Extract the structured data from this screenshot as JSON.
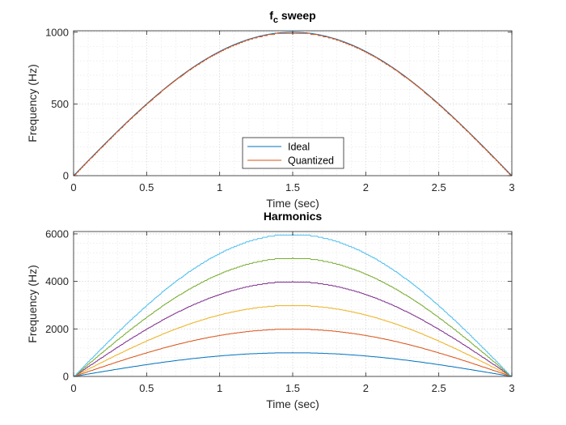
{
  "chart_data": [
    {
      "type": "line",
      "title": "f",
      "title_subscript": "c",
      "title_suffix": " sweep",
      "xlabel": "Time (sec)",
      "ylabel": "Frequency (Hz)",
      "xlim": [
        0,
        3
      ],
      "ylim": [
        0,
        1010
      ],
      "xticks": [
        0,
        0.5,
        1,
        1.5,
        2,
        2.5,
        3
      ],
      "xtick_labels": [
        "0",
        "0.5",
        "1",
        "1.5",
        "2",
        "2.5",
        "3"
      ],
      "yticks": [
        0,
        500,
        1000
      ],
      "ytick_labels": [
        "0",
        "500",
        "1000"
      ],
      "grid": true,
      "minor_grid": true,
      "legend_position": "lower-center",
      "series": [
        {
          "name": "Ideal",
          "color": "#0072BD",
          "function": "1000*sin(pi*t/3)",
          "t_range": [
            0,
            3
          ],
          "step_hz": 0
        },
        {
          "name": "Quantized",
          "color": "#D95319",
          "function": "1000*sin(pi*t/3)",
          "t_range": [
            0,
            3
          ],
          "step_hz": 8
        }
      ]
    },
    {
      "type": "line",
      "title": "Harmonics",
      "xlabel": "Time (sec)",
      "ylabel": "Frequency (Hz)",
      "xlim": [
        0,
        3
      ],
      "ylim": [
        0,
        6100
      ],
      "xticks": [
        0,
        0.5,
        1,
        1.5,
        2,
        2.5,
        3
      ],
      "xtick_labels": [
        "0",
        "0.5",
        "1",
        "1.5",
        "2",
        "2.5",
        "3"
      ],
      "yticks": [
        0,
        2000,
        4000,
        6000
      ],
      "ytick_labels": [
        "0",
        "2000",
        "4000",
        "6000"
      ],
      "grid": true,
      "minor_grid": true,
      "series": [
        {
          "color": "#0072BD",
          "function": "1000*sin(pi*t/3)",
          "t_range": [
            0,
            3
          ],
          "step_hz": 8
        },
        {
          "color": "#D95319",
          "function": "2000*sin(pi*t/3)",
          "t_range": [
            0,
            3
          ],
          "step_hz": 16
        },
        {
          "color": "#EDB120",
          "function": "3000*sin(pi*t/3)",
          "t_range": [
            0,
            3
          ],
          "step_hz": 24
        },
        {
          "color": "#7E2F8E",
          "function": "4000*sin(pi*t/3)",
          "t_range": [
            0,
            3
          ],
          "step_hz": 32
        },
        {
          "color": "#77AC30",
          "function": "5000*sin(pi*t/3)",
          "t_range": [
            0,
            3
          ],
          "step_hz": 40
        },
        {
          "color": "#4DBEEE",
          "function": "6000*sin(pi*t/3)",
          "t_range": [
            0,
            3
          ],
          "step_hz": 48
        }
      ]
    }
  ]
}
